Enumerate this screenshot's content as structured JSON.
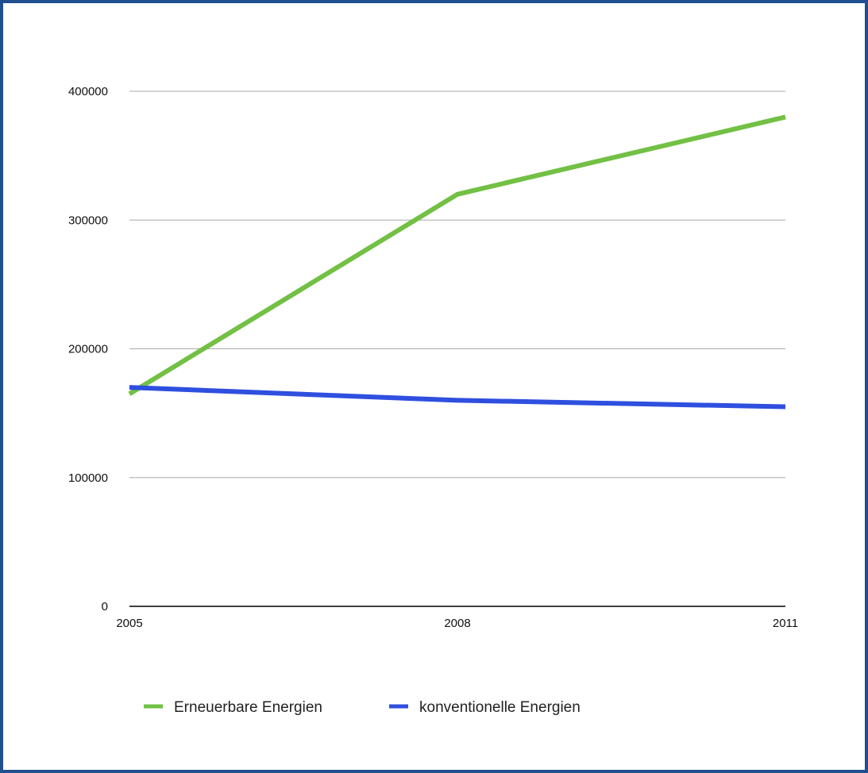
{
  "colors": {
    "frame": "#1f4f8f",
    "grid": "#a8a8a8",
    "axis": "#000000"
  },
  "chart_data": {
    "type": "line",
    "x": [
      "2005",
      "2008",
      "2011"
    ],
    "series": [
      {
        "name": "Erneuerbare Energien",
        "color": "#72c044",
        "values": [
          165000,
          320000,
          380000
        ]
      },
      {
        "name": "konventionelle Energien",
        "color": "#2f4fdf",
        "values": [
          170000,
          160000,
          155000
        ]
      }
    ],
    "y_ticks": [
      "0",
      "100000",
      "200000",
      "300000",
      "400000"
    ],
    "ylim": [
      0,
      400000
    ],
    "grid": true,
    "legend_position": "bottom"
  }
}
